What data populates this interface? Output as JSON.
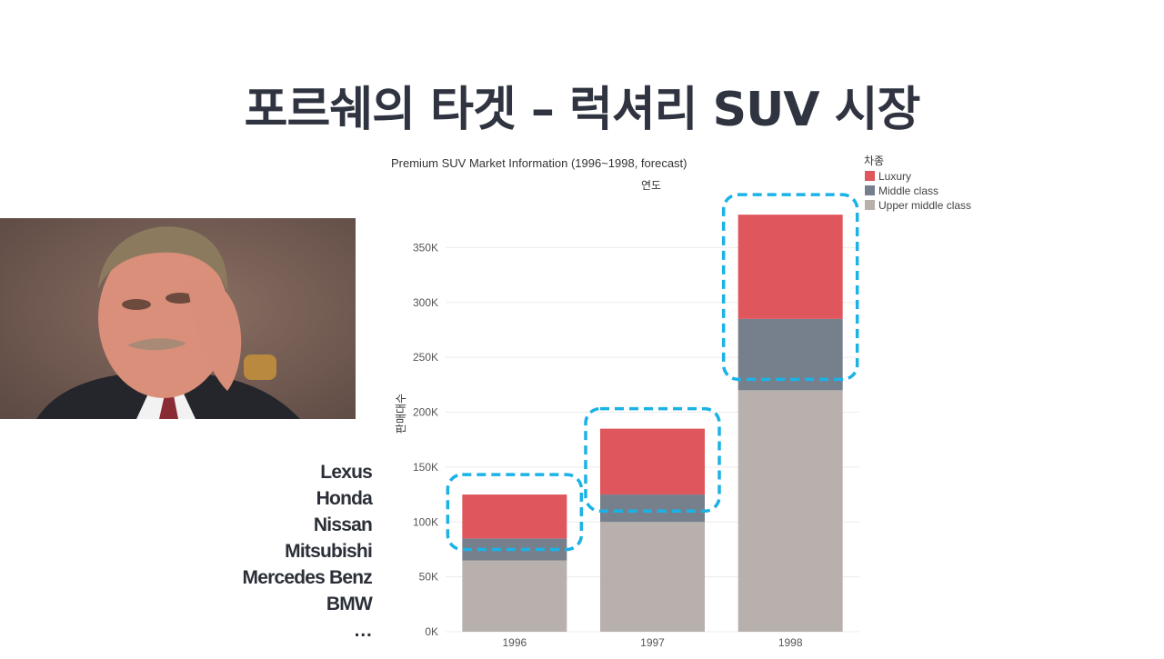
{
  "slide": {
    "title": "포르쉐의 타겟 – 럭셔리 SUV 시장",
    "brands": [
      "Lexus",
      "Honda",
      "Nissan",
      "Mitsubishi",
      "Mercedes Benz",
      "BMW",
      "…"
    ]
  },
  "chart_data": {
    "type": "bar",
    "stacked": true,
    "title": "Premium SUV Market Information (1996~1998, forecast)",
    "xlabel": "연도",
    "xlabel_position": "top",
    "ylabel": "판매대수",
    "categories": [
      "1996",
      "1997",
      "1998"
    ],
    "ylim": [
      0,
      400000
    ],
    "yticks": [
      0,
      50000,
      100000,
      150000,
      200000,
      250000,
      300000,
      350000
    ],
    "ytick_labels": [
      "0K",
      "50K",
      "100K",
      "150K",
      "200K",
      "250K",
      "300K",
      "350K"
    ],
    "grid": true,
    "legend": {
      "title": "차종",
      "placement": "right"
    },
    "series": [
      {
        "name": "Upper middle class",
        "color": "#b8b0ad",
        "values": [
          65000,
          100000,
          220000
        ]
      },
      {
        "name": "Middle class",
        "color": "#76808d",
        "values": [
          20000,
          25000,
          65000
        ]
      },
      {
        "name": "Luxury",
        "color": "#df565c",
        "values": [
          40000,
          60000,
          95000
        ]
      }
    ],
    "legend_order": [
      "Luxury",
      "Middle class",
      "Upper middle class"
    ],
    "highlight": {
      "style": "dashed-rounded-box",
      "color": "#1bb2e6"
    }
  }
}
